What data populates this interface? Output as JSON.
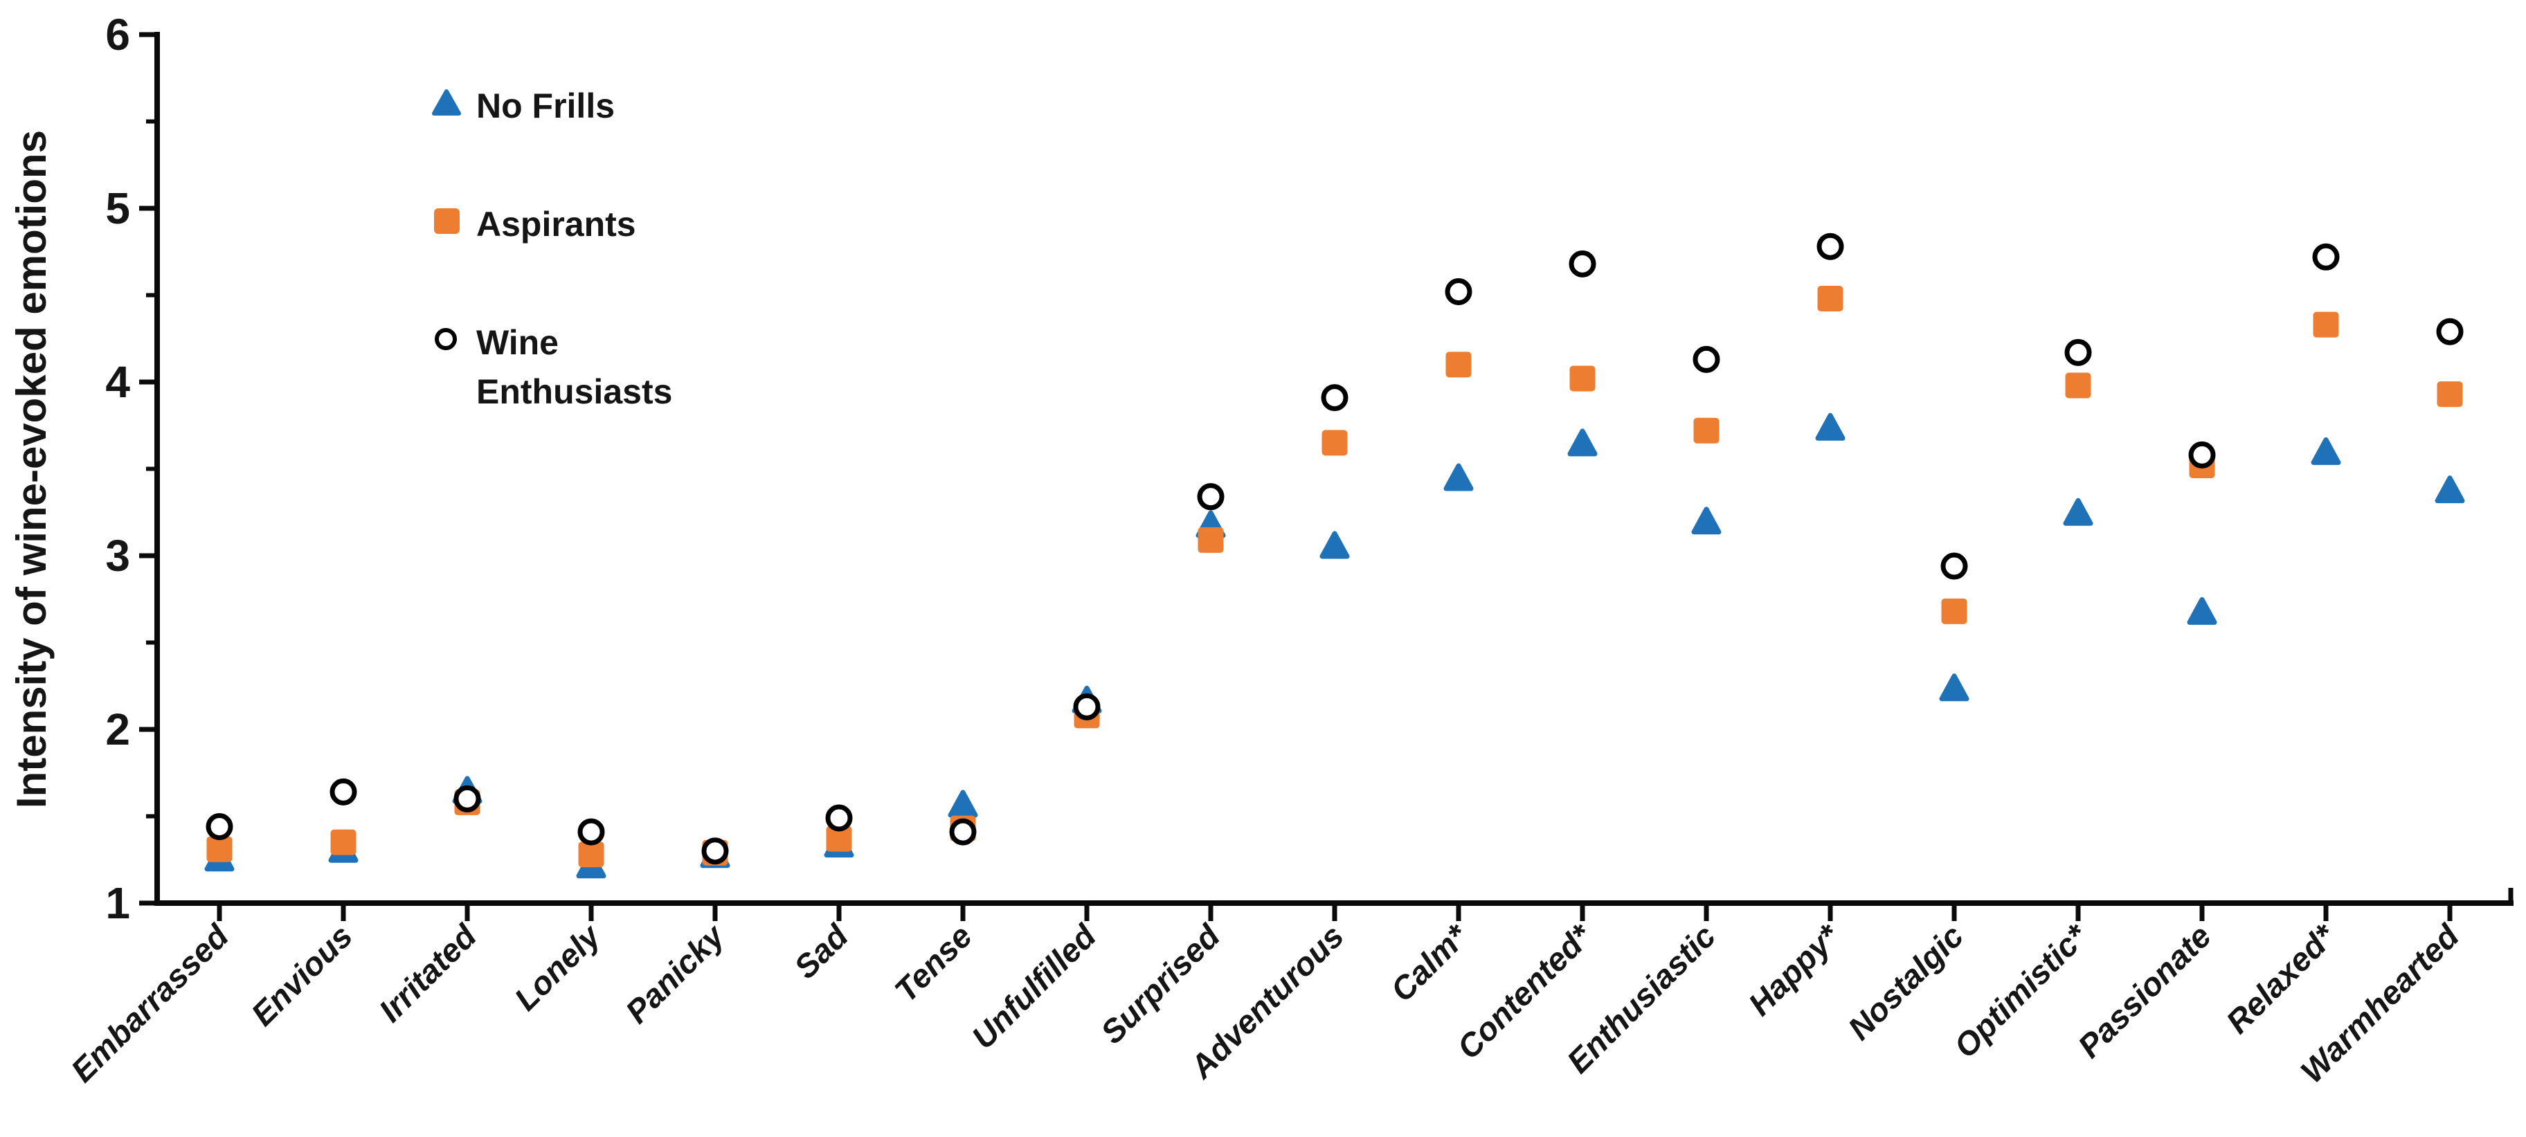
{
  "chart_data": {
    "type": "scatter",
    "title": "",
    "xlabel": "",
    "ylabel": "Intensity of wine-evoked emotions",
    "ylim": [
      1,
      6
    ],
    "yticks": [
      1,
      2,
      3,
      4,
      5,
      6
    ],
    "ytick_minor_step": 0.5,
    "grid": false,
    "legend_position": "inside-top-left",
    "categories": [
      "Embarrassed",
      "Envious",
      "Irritated",
      "Lonely",
      "Panicky",
      "Sad",
      "Tense",
      "Unfulfilled",
      "Surprised",
      "Adventurous",
      "Calm*",
      "Contented*",
      "Enthusiastic",
      "Happy*",
      "Nostalgic",
      "Optimistic*",
      "Passionate",
      "Relaxed*",
      "Warmhearted"
    ],
    "series": [
      {
        "name": "No Frills",
        "marker": "triangle",
        "color": "#1F72B8",
        "values": [
          1.26,
          1.31,
          1.65,
          1.22,
          1.28,
          1.34,
          1.57,
          2.17,
          3.18,
          3.06,
          3.45,
          3.65,
          3.2,
          3.74,
          2.24,
          3.25,
          2.68,
          3.6,
          3.38
        ]
      },
      {
        "name": "Aspirants",
        "marker": "square",
        "color": "#ED7D31",
        "values": [
          1.31,
          1.35,
          1.58,
          1.28,
          1.29,
          1.37,
          1.43,
          2.08,
          3.09,
          3.65,
          4.1,
          4.02,
          3.72,
          4.48,
          2.68,
          3.98,
          3.52,
          4.33,
          3.93
        ]
      },
      {
        "name": "Wine Enthusiasts",
        "marker": "open-circle",
        "color": "#000000",
        "fill": "#FFFFFF",
        "values": [
          1.44,
          1.64,
          1.6,
          1.41,
          1.3,
          1.49,
          1.41,
          2.13,
          3.34,
          3.91,
          4.52,
          4.68,
          4.13,
          4.78,
          2.94,
          4.17,
          3.58,
          4.72,
          4.29
        ]
      }
    ]
  },
  "colors": {
    "no_frills_blue": "#1F72B8",
    "aspirants_orange": "#ED7D31",
    "enthusiast_ring": "#000000",
    "axis": "#0A0A0A",
    "text": "#151515"
  }
}
